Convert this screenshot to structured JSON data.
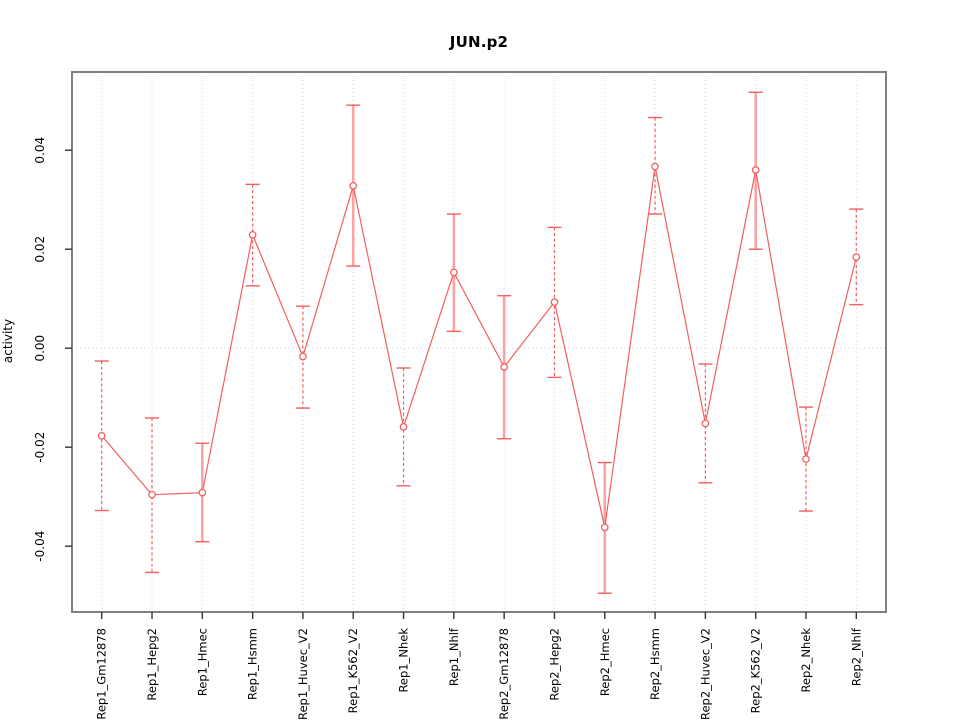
{
  "window": {
    "background": "#ffffff"
  },
  "chart_data": {
    "type": "line",
    "title": "JUN.p2",
    "xlabel": "",
    "ylabel": "activity",
    "ylim": [
      -0.0533,
      0.0558
    ],
    "yticks": [
      {
        "value": -0.04,
        "label": "-0.04"
      },
      {
        "value": -0.02,
        "label": "-0.02"
      },
      {
        "value": 0.0,
        "label": "0.00"
      },
      {
        "value": 0.02,
        "label": "0.02"
      },
      {
        "value": 0.04,
        "label": "0.04"
      }
    ],
    "grid": {
      "vertical_dotted_per_category": true,
      "horizontal_zero_line_dotted": true
    },
    "legend": "none",
    "series_color": "#f25f5f",
    "error_bar_light_color": "#f9a4a4",
    "grid_color": "#d8d8d8",
    "box_color": "#808080",
    "categories": [
      "Rep1_Gm12878",
      "Rep1_Hepg2",
      "Rep1_Hmec",
      "Rep1_Hsmm",
      "Rep1_Huvec_V2",
      "Rep1_K562_V2",
      "Rep1_Nhek",
      "Rep1_Nhlf",
      "Rep2_Gm12878",
      "Rep2_Hepg2",
      "Rep2_Hmec",
      "Rep2_Hsmm",
      "Rep2_Huvec_V2",
      "Rep2_K562_V2",
      "Rep2_Nhek",
      "Rep2_Nhlf"
    ],
    "points": [
      {
        "label": "Rep1_Gm12878",
        "value": -0.0177,
        "upper": -0.0026,
        "lower": -0.0328,
        "bar_style": "dashed"
      },
      {
        "label": "Rep1_Hepg2",
        "value": -0.0296,
        "upper": -0.0141,
        "lower": -0.0453,
        "bar_style": "dashed"
      },
      {
        "label": "Rep1_Hmec",
        "value": -0.0292,
        "upper": -0.0192,
        "lower": -0.0391,
        "bar_style": "solid"
      },
      {
        "label": "Rep1_Hsmm",
        "value": 0.0229,
        "upper": 0.0331,
        "lower": 0.0126,
        "bar_style": "dashed"
      },
      {
        "label": "Rep1_Huvec_V2",
        "value": -0.0017,
        "upper": 0.0085,
        "lower": -0.0121,
        "bar_style": "dashed"
      },
      {
        "label": "Rep1_K562_V2",
        "value": 0.0328,
        "upper": 0.0491,
        "lower": 0.0166,
        "bar_style": "solid"
      },
      {
        "label": "Rep1_Nhek",
        "value": -0.0159,
        "upper": -0.004,
        "lower": -0.0278,
        "bar_style": "dashed"
      },
      {
        "label": "Rep1_Nhlf",
        "value": 0.0153,
        "upper": 0.0271,
        "lower": 0.0034,
        "bar_style": "solid"
      },
      {
        "label": "Rep2_Gm12878",
        "value": -0.0038,
        "upper": 0.0106,
        "lower": -0.0183,
        "bar_style": "solid"
      },
      {
        "label": "Rep2_Hepg2",
        "value": 0.0093,
        "upper": 0.0244,
        "lower": -0.0059,
        "bar_style": "dashed"
      },
      {
        "label": "Rep2_Hmec",
        "value": -0.0362,
        "upper": -0.0231,
        "lower": -0.0495,
        "bar_style": "solid"
      },
      {
        "label": "Rep2_Hsmm",
        "value": 0.0367,
        "upper": 0.0466,
        "lower": 0.0271,
        "bar_style": "dashed"
      },
      {
        "label": "Rep2_Huvec_V2",
        "value": -0.0152,
        "upper": -0.0032,
        "lower": -0.0272,
        "bar_style": "dashed"
      },
      {
        "label": "Rep2_K562_V2",
        "value": 0.036,
        "upper": 0.0517,
        "lower": 0.02,
        "bar_style": "solid"
      },
      {
        "label": "Rep2_Nhek",
        "value": -0.0224,
        "upper": -0.0119,
        "lower": -0.0329,
        "bar_style": "dashed"
      },
      {
        "label": "Rep2_Nhlf",
        "value": 0.0184,
        "upper": 0.0281,
        "lower": 0.0088,
        "bar_style": "dashed"
      }
    ]
  }
}
